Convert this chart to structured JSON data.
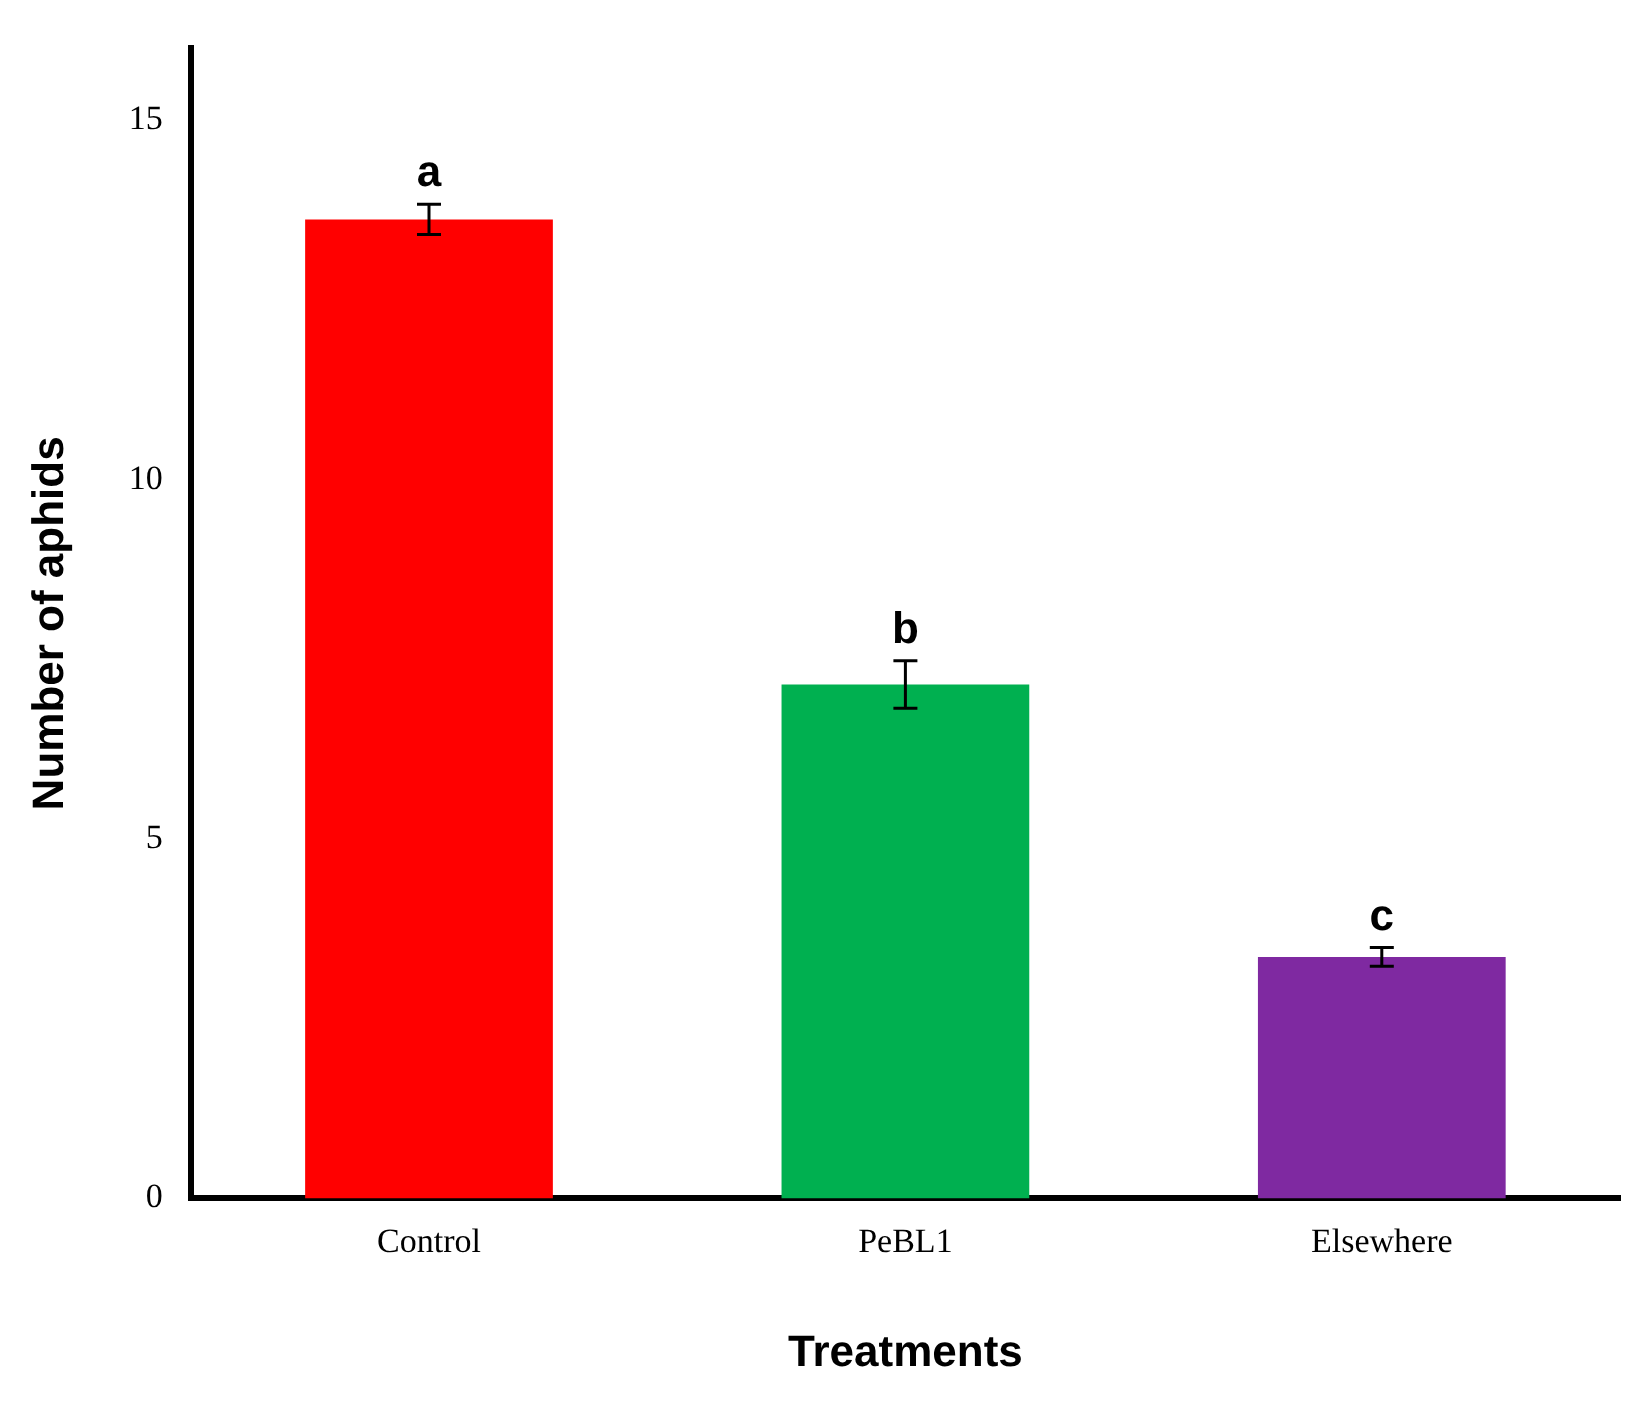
{
  "chart_data": {
    "type": "bar",
    "xlabel": "Treatments",
    "ylabel": "Number of aphids",
    "categories": [
      "Control",
      "PeBL1",
      "Elsewhere"
    ],
    "values": [
      13.62,
      7.15,
      3.36
    ],
    "errors": [
      0.21,
      0.33,
      0.13
    ],
    "colors": [
      "#ff0000",
      "#00b050",
      "#7f29a1"
    ],
    "ylim": [
      0,
      16
    ],
    "yticks": [
      0,
      5,
      10,
      15
    ],
    "grid": false,
    "legend": false,
    "annotations": [
      {
        "text": "a",
        "x": "Control",
        "y": 13.83
      },
      {
        "text": "b",
        "x": "PeBL1",
        "y": 7.48
      },
      {
        "text": "c",
        "x": "Elsewhere",
        "y": 3.49
      }
    ]
  }
}
